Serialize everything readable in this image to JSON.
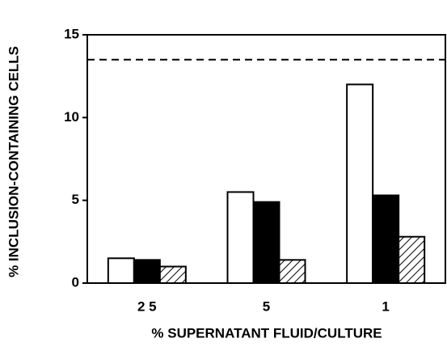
{
  "chart_data": {
    "type": "bar",
    "x_label": "% SUPERNATANT FLUID/CULTURE",
    "y_label": "% INCLUSION-CONTAINING CELLS",
    "categories": [
      "2 5",
      "5",
      "1"
    ],
    "series": [
      {
        "color": "#ffffff",
        "values": [
          1.5,
          5.5,
          12.0
        ]
      },
      {
        "color": "#000000",
        "values": [
          1.4,
          4.9,
          5.3
        ]
      },
      {
        "color": "#ffffff",
        "hatch": true,
        "values": [
          1.0,
          1.4,
          2.8
        ]
      }
    ],
    "reference_line": {
      "value": 13.5,
      "style": "dashed"
    },
    "ylim": [
      0,
      15
    ],
    "yticks": [
      0,
      5,
      10,
      15
    ],
    "grid": false
  }
}
